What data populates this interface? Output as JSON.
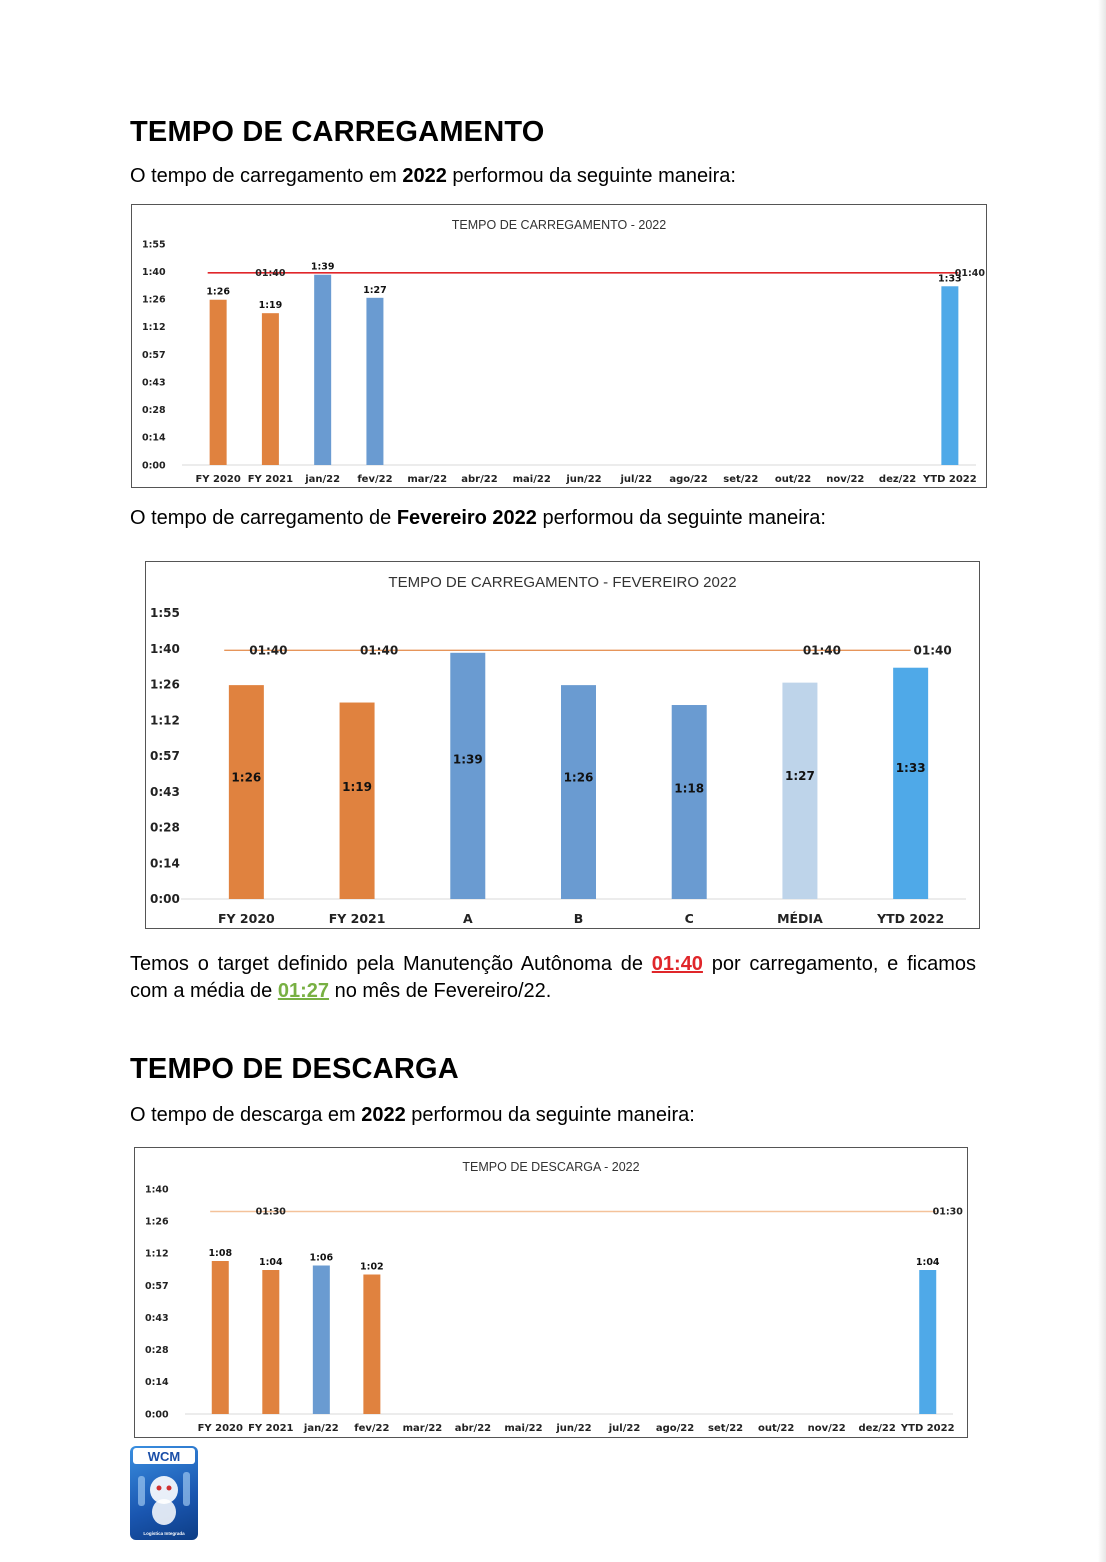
{
  "section1": {
    "heading": "TEMPO DE CARREGAMENTO",
    "intro_pre": "O tempo de carregamento em ",
    "intro_bold": "2022",
    "intro_post": " performou da seguinte maneira:"
  },
  "section1b": {
    "intro_pre": "O tempo de carregamento de ",
    "intro_bold": "Fevereiro 2022",
    "intro_post": " performou da seguinte maneira:"
  },
  "summary": {
    "part1": "Temos o target definido pela Manutenção Autônoma de ",
    "target": "01:40",
    "part2": " por carregamento, e ficamos com a média de ",
    "average": "01:27",
    "part3": " no mês de Fevereiro/22."
  },
  "section2": {
    "heading": "TEMPO DE DESCARGA",
    "intro_pre": "O tempo de descarga em ",
    "intro_bold": "2022",
    "intro_post": " performou da seguinte maneira:"
  },
  "logo": {
    "text": "WCM",
    "subtext": "Logística Integrada"
  },
  "colors": {
    "orange": "#e0823f",
    "blue": "#6a9bd1",
    "light_blue": "#bed4ea",
    "sky_blue": "#4fa9e8",
    "red_line": "#e0262a",
    "orange_line": "#e6955a",
    "peach_line": "#f4c29a",
    "highlight_red": "#e0262a",
    "highlight_green": "#78b043"
  },
  "chart_data": [
    {
      "type": "bar",
      "title": "TEMPO DE CARREGAMENTO - 2022",
      "categories": [
        "FY 2020",
        "FY 2021",
        "jan/22",
        "fev/22",
        "mar/22",
        "abr/22",
        "mai/22",
        "jun/22",
        "jul/22",
        "ago/22",
        "set/22",
        "out/22",
        "nov/22",
        "dez/22",
        "YTD 2022"
      ],
      "values": [
        86,
        79,
        99,
        87,
        null,
        null,
        null,
        null,
        null,
        null,
        null,
        null,
        null,
        null,
        93
      ],
      "value_labels": [
        "1:26",
        "1:19",
        "1:39",
        "1:27",
        "",
        "",
        "",
        "",
        "",
        "",
        "",
        "",
        "",
        "",
        "1:33"
      ],
      "bar_colors": [
        "orange",
        "orange",
        "blue",
        "blue",
        "blue",
        "blue",
        "blue",
        "blue",
        "blue",
        "blue",
        "blue",
        "blue",
        "blue",
        "blue",
        "sky_blue"
      ],
      "target": {
        "value": 100,
        "labels": [
          "01:40",
          "01:40"
        ],
        "label_at": [
          1,
          14
        ],
        "color": "red_line"
      },
      "ytick_labels": [
        "0:00",
        "0:14",
        "0:28",
        "0:43",
        "0:57",
        "1:12",
        "1:26",
        "1:40",
        "1:55"
      ],
      "ylim": [
        0,
        115
      ]
    },
    {
      "type": "bar",
      "title": "TEMPO DE CARREGAMENTO - FEVEREIRO 2022",
      "categories": [
        "FY 2020",
        "FY 2021",
        "A",
        "B",
        "C",
        "MÉDIA",
        "YTD 2022"
      ],
      "values": [
        86,
        79,
        99,
        86,
        78,
        87,
        93
      ],
      "value_labels": [
        "1:26",
        "1:19",
        "1:39",
        "1:26",
        "1:18",
        "1:27",
        "1:33"
      ],
      "bar_colors": [
        "orange",
        "orange",
        "blue",
        "blue",
        "blue",
        "light_blue",
        "sky_blue"
      ],
      "target": {
        "value": 100,
        "labels": [
          "01:40",
          "01:40",
          "01:40",
          "01:40"
        ],
        "label_at": [
          0,
          1,
          5,
          6
        ],
        "color": "orange_line"
      },
      "ytick_labels": [
        "0:00",
        "0:14",
        "0:28",
        "0:43",
        "0:57",
        "1:12",
        "1:26",
        "1:40",
        "1:55"
      ],
      "ylim": [
        0,
        115
      ]
    },
    {
      "type": "bar",
      "title": "TEMPO DE DESCARGA - 2022",
      "categories": [
        "FY 2020",
        "FY 2021",
        "jan/22",
        "fev/22",
        "mar/22",
        "abr/22",
        "mai/22",
        "jun/22",
        "jul/22",
        "ago/22",
        "set/22",
        "out/22",
        "nov/22",
        "dez/22",
        "YTD 2022"
      ],
      "values": [
        68,
        64,
        66,
        62,
        null,
        null,
        null,
        null,
        null,
        null,
        null,
        null,
        null,
        null,
        64
      ],
      "value_labels": [
        "1:08",
        "1:04",
        "1:06",
        "1:02",
        "",
        "",
        "",
        "",
        "",
        "",
        "",
        "",
        "",
        "",
        "1:04"
      ],
      "bar_colors": [
        "orange",
        "orange",
        "blue",
        "orange",
        "blue",
        "blue",
        "blue",
        "blue",
        "blue",
        "blue",
        "blue",
        "blue",
        "blue",
        "blue",
        "sky_blue"
      ],
      "target": {
        "value": 90,
        "labels": [
          "01:30",
          "01:30"
        ],
        "label_at": [
          1,
          14
        ],
        "color": "peach_line"
      },
      "ytick_labels": [
        "0:00",
        "0:14",
        "0:28",
        "0:43",
        "0:57",
        "1:12",
        "1:26",
        "1:40"
      ],
      "ylim": [
        0,
        100
      ]
    }
  ]
}
